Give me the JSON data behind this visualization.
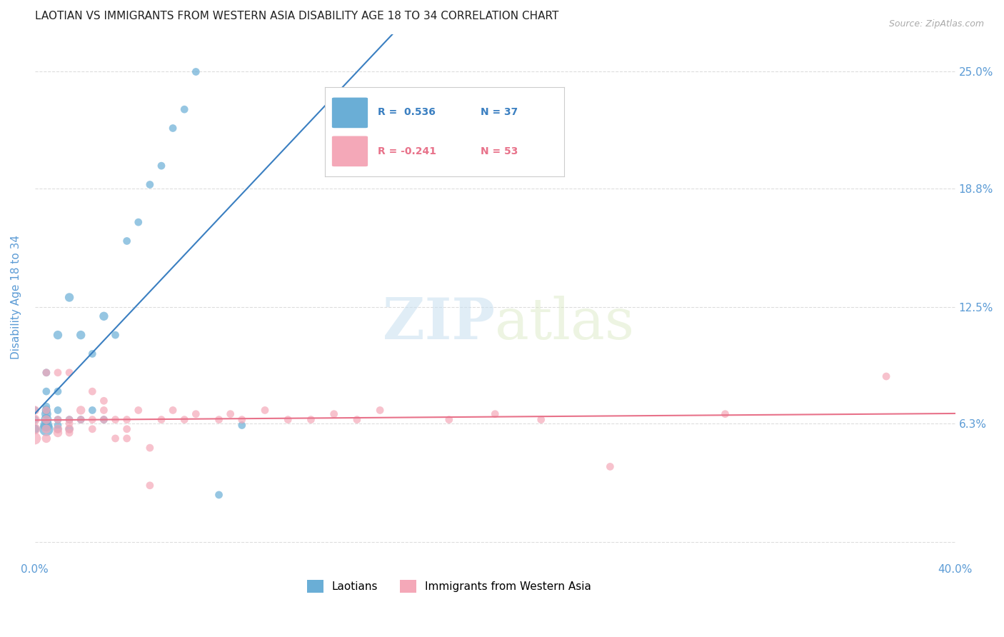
{
  "title": "LAOTIAN VS IMMIGRANTS FROM WESTERN ASIA DISABILITY AGE 18 TO 34 CORRELATION CHART",
  "source": "Source: ZipAtlas.com",
  "ylabel": "Disability Age 18 to 34",
  "xlabel": "",
  "xlim": [
    0.0,
    0.4
  ],
  "ylim": [
    -0.01,
    0.27
  ],
  "xticks": [
    0.0,
    0.05,
    0.1,
    0.15,
    0.2,
    0.25,
    0.3,
    0.35,
    0.4
  ],
  "xticklabels": [
    "0.0%",
    "",
    "",
    "",
    "",
    "",
    "",
    "",
    "40.0%"
  ],
  "ytick_vals": [
    0.0,
    0.063,
    0.125,
    0.188,
    0.25
  ],
  "ytick_labels": [
    "",
    "6.3%",
    "12.5%",
    "18.8%",
    "25.0%"
  ],
  "laotian_R": 0.536,
  "laotian_N": 37,
  "western_asia_R": -0.241,
  "western_asia_N": 53,
  "laotian_color": "#6aaed6",
  "western_asia_color": "#f4a8b8",
  "laotian_line_color": "#3a7fc1",
  "western_asia_line_color": "#e8728a",
  "laotian_scatter": {
    "x": [
      0.0,
      0.0,
      0.0,
      0.0,
      0.005,
      0.005,
      0.005,
      0.005,
      0.005,
      0.005,
      0.005,
      0.005,
      0.01,
      0.01,
      0.01,
      0.01,
      0.01,
      0.01,
      0.015,
      0.015,
      0.015,
      0.02,
      0.02,
      0.025,
      0.025,
      0.03,
      0.03,
      0.035,
      0.04,
      0.045,
      0.05,
      0.055,
      0.06,
      0.065,
      0.07,
      0.08,
      0.09
    ],
    "y": [
      0.06,
      0.06,
      0.065,
      0.07,
      0.06,
      0.062,
      0.065,
      0.068,
      0.07,
      0.072,
      0.08,
      0.09,
      0.06,
      0.062,
      0.065,
      0.07,
      0.08,
      0.11,
      0.06,
      0.065,
      0.13,
      0.065,
      0.11,
      0.07,
      0.1,
      0.12,
      0.065,
      0.11,
      0.16,
      0.17,
      0.19,
      0.2,
      0.22,
      0.23,
      0.25,
      0.025,
      0.062
    ],
    "sizes": [
      80,
      80,
      60,
      60,
      200,
      150,
      120,
      100,
      80,
      60,
      60,
      60,
      60,
      60,
      60,
      60,
      60,
      80,
      60,
      60,
      80,
      60,
      80,
      60,
      60,
      80,
      60,
      60,
      60,
      60,
      60,
      60,
      60,
      60,
      60,
      60,
      60
    ]
  },
  "western_asia_scatter": {
    "x": [
      0.0,
      0.0,
      0.0,
      0.0,
      0.005,
      0.005,
      0.005,
      0.005,
      0.005,
      0.01,
      0.01,
      0.01,
      0.01,
      0.015,
      0.015,
      0.015,
      0.015,
      0.015,
      0.02,
      0.02,
      0.025,
      0.025,
      0.025,
      0.03,
      0.03,
      0.03,
      0.035,
      0.035,
      0.04,
      0.04,
      0.04,
      0.045,
      0.05,
      0.05,
      0.055,
      0.06,
      0.065,
      0.07,
      0.08,
      0.085,
      0.09,
      0.1,
      0.11,
      0.12,
      0.13,
      0.14,
      0.15,
      0.18,
      0.2,
      0.22,
      0.25,
      0.3,
      0.37
    ],
    "y": [
      0.055,
      0.06,
      0.065,
      0.07,
      0.055,
      0.06,
      0.065,
      0.07,
      0.09,
      0.058,
      0.06,
      0.065,
      0.09,
      0.058,
      0.06,
      0.063,
      0.065,
      0.09,
      0.065,
      0.07,
      0.06,
      0.065,
      0.08,
      0.065,
      0.07,
      0.075,
      0.055,
      0.065,
      0.055,
      0.06,
      0.065,
      0.07,
      0.03,
      0.05,
      0.065,
      0.07,
      0.065,
      0.068,
      0.065,
      0.068,
      0.065,
      0.07,
      0.065,
      0.065,
      0.068,
      0.065,
      0.07,
      0.065,
      0.068,
      0.065,
      0.04,
      0.068,
      0.088
    ],
    "sizes": [
      150,
      120,
      100,
      80,
      80,
      80,
      80,
      60,
      60,
      80,
      80,
      60,
      60,
      60,
      80,
      60,
      60,
      60,
      60,
      80,
      60,
      60,
      60,
      60,
      60,
      60,
      60,
      60,
      60,
      60,
      60,
      60,
      60,
      60,
      60,
      60,
      60,
      60,
      60,
      60,
      60,
      60,
      60,
      60,
      60,
      60,
      60,
      60,
      60,
      60,
      60,
      60,
      60
    ]
  },
  "watermark_zip": "ZIP",
  "watermark_atlas": "atlas",
  "background_color": "#ffffff",
  "grid_color": "#dddddd",
  "title_color": "#222222",
  "tick_label_color": "#5b9bd5"
}
